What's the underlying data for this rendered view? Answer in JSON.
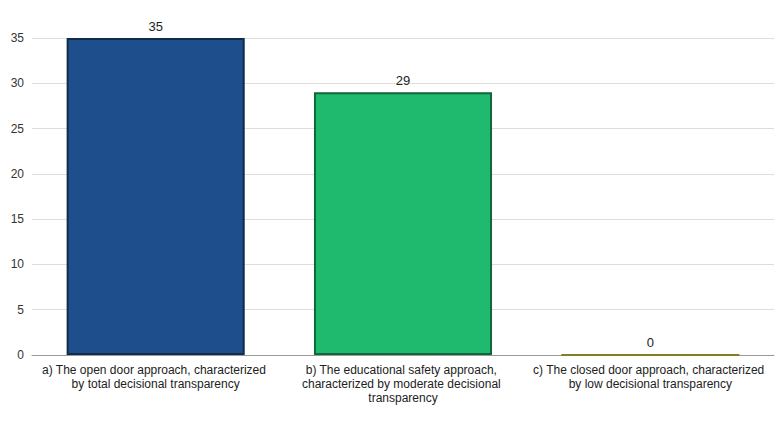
{
  "chart_data": {
    "type": "bar",
    "categories": [
      "a) The open door approach, characterized by total decisional transparency",
      "b) The educational safety approach, characterized by moderate decisional transparency",
      "c) The closed door approach, characterized by low decisional transparency"
    ],
    "values": [
      35,
      29,
      0
    ],
    "colors": [
      "#1f4e8c",
      "#1fba6d",
      "#f0e442"
    ],
    "ylim": [
      0,
      35
    ],
    "yticks": [
      0,
      5,
      10,
      15,
      20,
      25,
      30,
      35
    ],
    "grid": true,
    "data_labels": true
  }
}
